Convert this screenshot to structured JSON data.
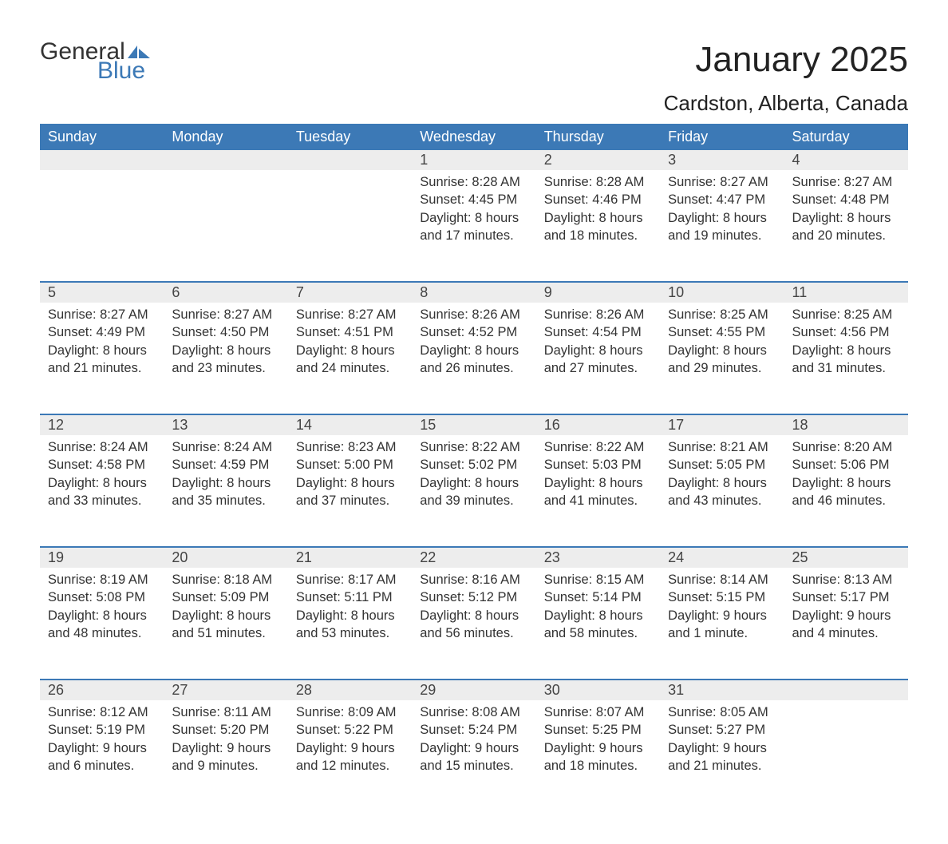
{
  "brand": {
    "word1": "General",
    "word2": "Blue",
    "icon_color": "#3c79b6",
    "text_color": "#333333"
  },
  "colors": {
    "header_bg": "#3c79b6",
    "header_text": "#ffffff",
    "daynum_bg": "#ededed",
    "row_border": "#3c79b6",
    "body_text": "#333333",
    "page_bg": "#ffffff"
  },
  "typography": {
    "month_title_fontsize": 44,
    "location_fontsize": 26,
    "weekday_fontsize": 18,
    "daynum_fontsize": 18,
    "cell_fontsize": 16.5,
    "logo_fontsize": 30
  },
  "title": "January 2025",
  "location": "Cardston, Alberta, Canada",
  "weekdays": [
    "Sunday",
    "Monday",
    "Tuesday",
    "Wednesday",
    "Thursday",
    "Friday",
    "Saturday"
  ],
  "weeks": [
    [
      null,
      null,
      null,
      {
        "n": "1",
        "sunrise": "8:28 AM",
        "sunset": "4:45 PM",
        "dl1": "8 hours",
        "dl2": "and 17 minutes."
      },
      {
        "n": "2",
        "sunrise": "8:28 AM",
        "sunset": "4:46 PM",
        "dl1": "8 hours",
        "dl2": "and 18 minutes."
      },
      {
        "n": "3",
        "sunrise": "8:27 AM",
        "sunset": "4:47 PM",
        "dl1": "8 hours",
        "dl2": "and 19 minutes."
      },
      {
        "n": "4",
        "sunrise": "8:27 AM",
        "sunset": "4:48 PM",
        "dl1": "8 hours",
        "dl2": "and 20 minutes."
      }
    ],
    [
      {
        "n": "5",
        "sunrise": "8:27 AM",
        "sunset": "4:49 PM",
        "dl1": "8 hours",
        "dl2": "and 21 minutes."
      },
      {
        "n": "6",
        "sunrise": "8:27 AM",
        "sunset": "4:50 PM",
        "dl1": "8 hours",
        "dl2": "and 23 minutes."
      },
      {
        "n": "7",
        "sunrise": "8:27 AM",
        "sunset": "4:51 PM",
        "dl1": "8 hours",
        "dl2": "and 24 minutes."
      },
      {
        "n": "8",
        "sunrise": "8:26 AM",
        "sunset": "4:52 PM",
        "dl1": "8 hours",
        "dl2": "and 26 minutes."
      },
      {
        "n": "9",
        "sunrise": "8:26 AM",
        "sunset": "4:54 PM",
        "dl1": "8 hours",
        "dl2": "and 27 minutes."
      },
      {
        "n": "10",
        "sunrise": "8:25 AM",
        "sunset": "4:55 PM",
        "dl1": "8 hours",
        "dl2": "and 29 minutes."
      },
      {
        "n": "11",
        "sunrise": "8:25 AM",
        "sunset": "4:56 PM",
        "dl1": "8 hours",
        "dl2": "and 31 minutes."
      }
    ],
    [
      {
        "n": "12",
        "sunrise": "8:24 AM",
        "sunset": "4:58 PM",
        "dl1": "8 hours",
        "dl2": "and 33 minutes."
      },
      {
        "n": "13",
        "sunrise": "8:24 AM",
        "sunset": "4:59 PM",
        "dl1": "8 hours",
        "dl2": "and 35 minutes."
      },
      {
        "n": "14",
        "sunrise": "8:23 AM",
        "sunset": "5:00 PM",
        "dl1": "8 hours",
        "dl2": "and 37 minutes."
      },
      {
        "n": "15",
        "sunrise": "8:22 AM",
        "sunset": "5:02 PM",
        "dl1": "8 hours",
        "dl2": "and 39 minutes."
      },
      {
        "n": "16",
        "sunrise": "8:22 AM",
        "sunset": "5:03 PM",
        "dl1": "8 hours",
        "dl2": "and 41 minutes."
      },
      {
        "n": "17",
        "sunrise": "8:21 AM",
        "sunset": "5:05 PM",
        "dl1": "8 hours",
        "dl2": "and 43 minutes."
      },
      {
        "n": "18",
        "sunrise": "8:20 AM",
        "sunset": "5:06 PM",
        "dl1": "8 hours",
        "dl2": "and 46 minutes."
      }
    ],
    [
      {
        "n": "19",
        "sunrise": "8:19 AM",
        "sunset": "5:08 PM",
        "dl1": "8 hours",
        "dl2": "and 48 minutes."
      },
      {
        "n": "20",
        "sunrise": "8:18 AM",
        "sunset": "5:09 PM",
        "dl1": "8 hours",
        "dl2": "and 51 minutes."
      },
      {
        "n": "21",
        "sunrise": "8:17 AM",
        "sunset": "5:11 PM",
        "dl1": "8 hours",
        "dl2": "and 53 minutes."
      },
      {
        "n": "22",
        "sunrise": "8:16 AM",
        "sunset": "5:12 PM",
        "dl1": "8 hours",
        "dl2": "and 56 minutes."
      },
      {
        "n": "23",
        "sunrise": "8:15 AM",
        "sunset": "5:14 PM",
        "dl1": "8 hours",
        "dl2": "and 58 minutes."
      },
      {
        "n": "24",
        "sunrise": "8:14 AM",
        "sunset": "5:15 PM",
        "dl1": "9 hours",
        "dl2": "and 1 minute."
      },
      {
        "n": "25",
        "sunrise": "8:13 AM",
        "sunset": "5:17 PM",
        "dl1": "9 hours",
        "dl2": "and 4 minutes."
      }
    ],
    [
      {
        "n": "26",
        "sunrise": "8:12 AM",
        "sunset": "5:19 PM",
        "dl1": "9 hours",
        "dl2": "and 6 minutes."
      },
      {
        "n": "27",
        "sunrise": "8:11 AM",
        "sunset": "5:20 PM",
        "dl1": "9 hours",
        "dl2": "and 9 minutes."
      },
      {
        "n": "28",
        "sunrise": "8:09 AM",
        "sunset": "5:22 PM",
        "dl1": "9 hours",
        "dl2": "and 12 minutes."
      },
      {
        "n": "29",
        "sunrise": "8:08 AM",
        "sunset": "5:24 PM",
        "dl1": "9 hours",
        "dl2": "and 15 minutes."
      },
      {
        "n": "30",
        "sunrise": "8:07 AM",
        "sunset": "5:25 PM",
        "dl1": "9 hours",
        "dl2": "and 18 minutes."
      },
      {
        "n": "31",
        "sunrise": "8:05 AM",
        "sunset": "5:27 PM",
        "dl1": "9 hours",
        "dl2": "and 21 minutes."
      },
      null
    ]
  ],
  "labels": {
    "sunrise": "Sunrise:",
    "sunset": "Sunset:",
    "daylight": "Daylight:"
  }
}
